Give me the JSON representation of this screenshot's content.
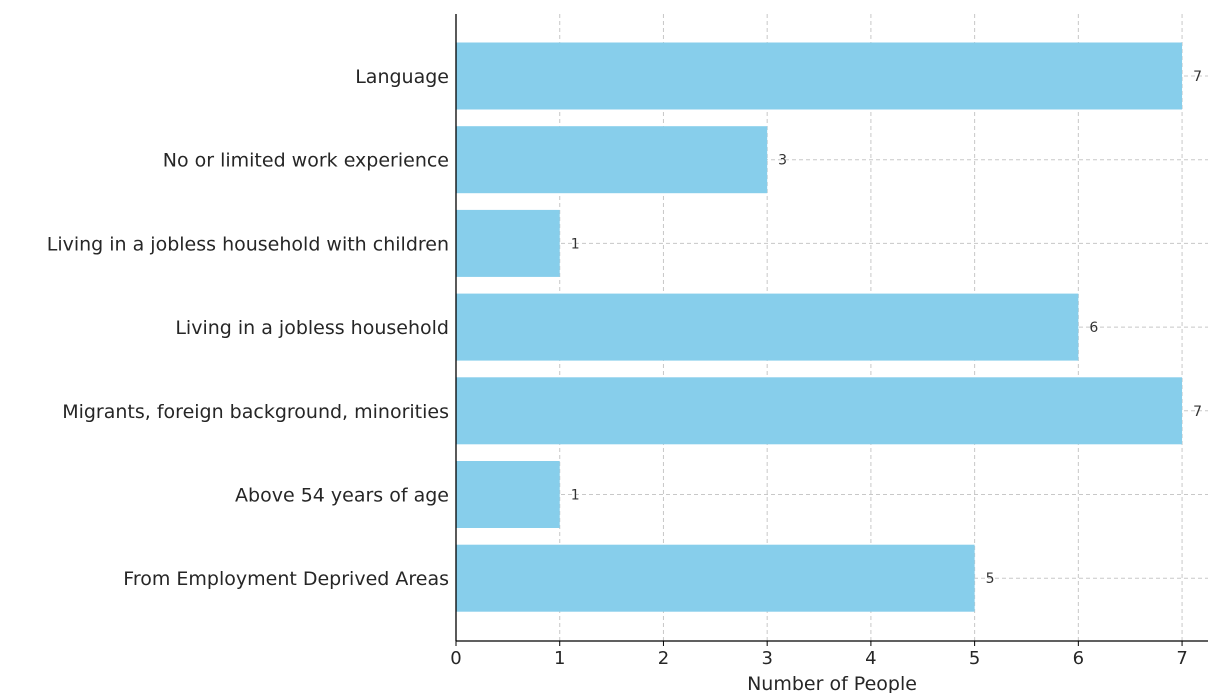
{
  "chart_data": {
    "type": "bar",
    "orientation": "horizontal",
    "categories": [
      "Language",
      "No or limited work experience",
      "Living in a jobless household with children",
      "Living in a jobless household",
      "Migrants, foreign background, minorities",
      "Above 54 years of age",
      "From Employment Deprived Areas"
    ],
    "values": [
      7,
      3,
      1,
      6,
      7,
      1,
      5
    ],
    "title": "",
    "xlabel": "Number of People",
    "ylabel": "",
    "xlim": [
      0,
      7.25
    ],
    "xticks": [
      0,
      1,
      2,
      3,
      4,
      5,
      6,
      7
    ],
    "grid": true,
    "bar_color": "#87ceeb",
    "data_labels": true
  }
}
